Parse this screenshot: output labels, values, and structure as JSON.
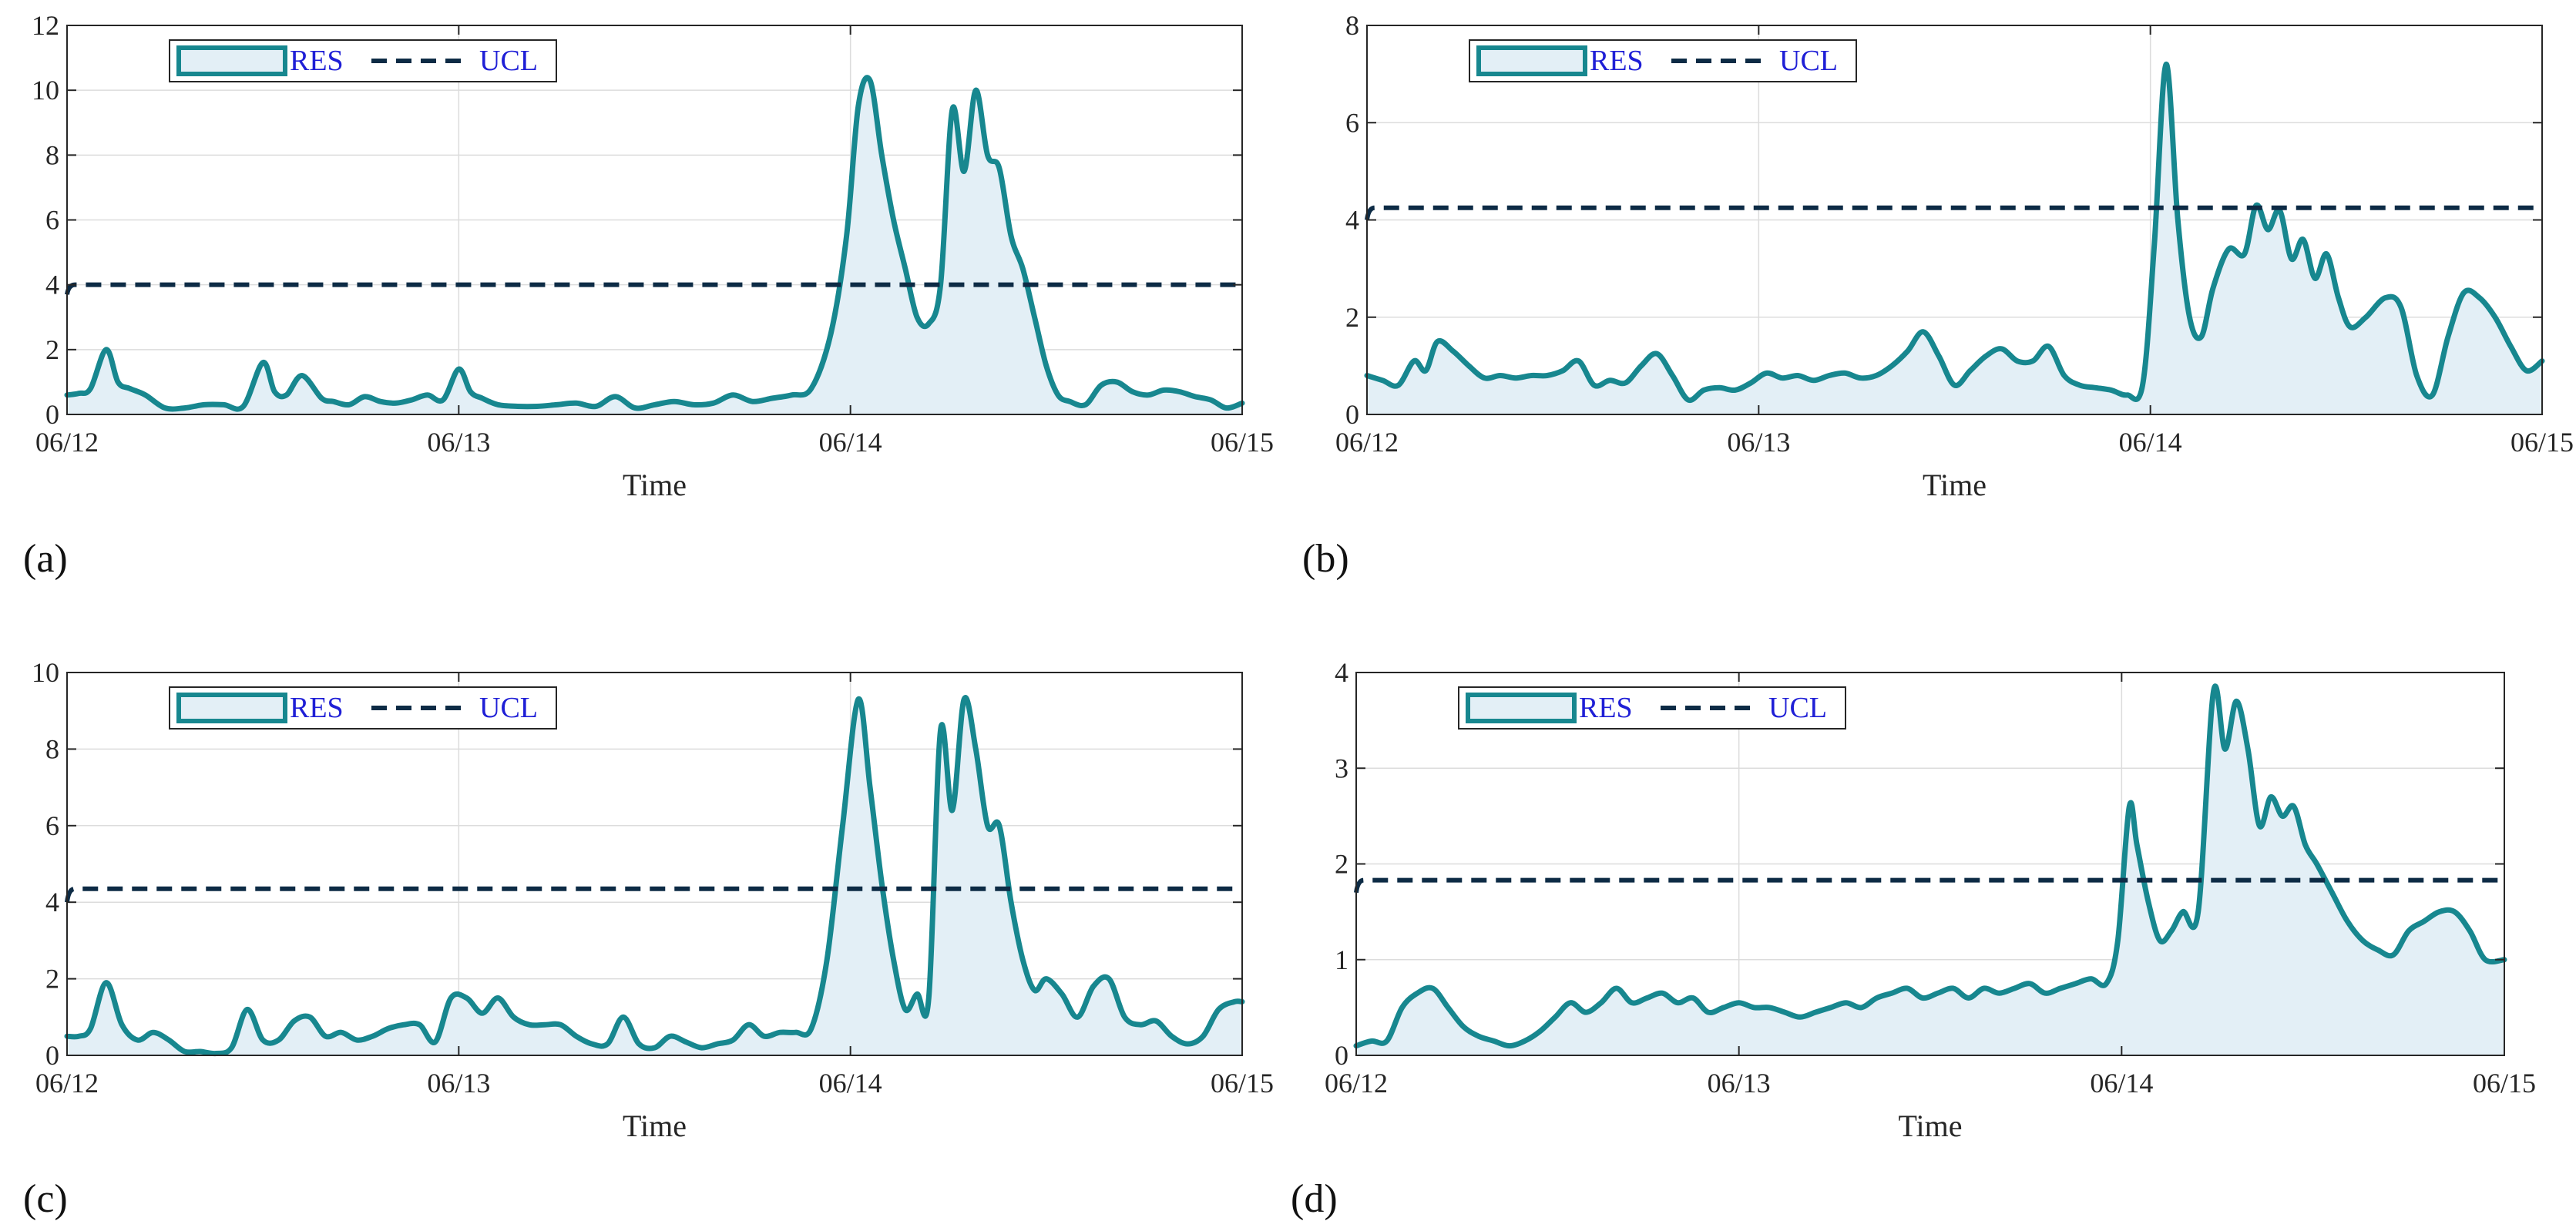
{
  "colors": {
    "res_line": "#17878f",
    "res_fill": "#e3eff6",
    "ucl_line": "#0d2b45",
    "grid": "#dcdcdc",
    "axis": "#262626",
    "legend_text": "#1f1fd6"
  },
  "chart_data": [
    {
      "type": "area",
      "panel_label": "(a)",
      "xlabel": "Time",
      "ylabel": "",
      "xlim": [
        0,
        3
      ],
      "x_ticks": [
        0,
        1,
        2,
        3
      ],
      "x_tick_labels": [
        "06/12",
        "06/13",
        "06/14",
        "06/15"
      ],
      "ylim": [
        0,
        12
      ],
      "y_ticks": [
        0,
        2,
        4,
        6,
        8,
        10,
        12
      ],
      "grid": true,
      "legend": {
        "entries": [
          "RES",
          "UCL"
        ],
        "position": "top-left"
      },
      "ucl": {
        "name": "UCL",
        "value": 4.0,
        "start": [
          0,
          3.7
        ]
      },
      "series": [
        {
          "name": "RES",
          "x": [
            0,
            0.03,
            0.06,
            0.1,
            0.13,
            0.16,
            0.2,
            0.25,
            0.3,
            0.35,
            0.4,
            0.45,
            0.5,
            0.53,
            0.56,
            0.6,
            0.65,
            0.68,
            0.72,
            0.76,
            0.8,
            0.84,
            0.88,
            0.92,
            0.96,
            1.0,
            1.03,
            1.06,
            1.1,
            1.15,
            1.2,
            1.25,
            1.3,
            1.35,
            1.4,
            1.45,
            1.5,
            1.55,
            1.6,
            1.65,
            1.7,
            1.75,
            1.8,
            1.85,
            1.9,
            1.95,
            1.99,
            2.02,
            2.05,
            2.08,
            2.11,
            2.14,
            2.17,
            2.2,
            2.23,
            2.26,
            2.29,
            2.32,
            2.35,
            2.38,
            2.41,
            2.44,
            2.47,
            2.5,
            2.53,
            2.56,
            2.6,
            2.64,
            2.68,
            2.72,
            2.76,
            2.8,
            2.84,
            2.88,
            2.92,
            2.96,
            3.0
          ],
          "values": [
            0.6,
            0.65,
            0.8,
            2.0,
            1.0,
            0.8,
            0.6,
            0.2,
            0.2,
            0.3,
            0.3,
            0.25,
            1.6,
            0.7,
            0.6,
            1.2,
            0.5,
            0.4,
            0.3,
            0.55,
            0.4,
            0.35,
            0.45,
            0.6,
            0.45,
            1.4,
            0.7,
            0.5,
            0.3,
            0.25,
            0.25,
            0.3,
            0.35,
            0.25,
            0.55,
            0.2,
            0.3,
            0.4,
            0.3,
            0.35,
            0.6,
            0.4,
            0.5,
            0.6,
            0.8,
            2.5,
            5.5,
            9.5,
            10.3,
            8.0,
            6.0,
            4.5,
            3.0,
            2.8,
            4.0,
            9.4,
            7.5,
            10.0,
            8.0,
            7.6,
            5.5,
            4.5,
            3.0,
            1.5,
            0.6,
            0.4,
            0.3,
            0.9,
            1.0,
            0.7,
            0.6,
            0.75,
            0.7,
            0.55,
            0.45,
            0.2,
            0.35
          ]
        }
      ]
    },
    {
      "type": "area",
      "panel_label": "(b)",
      "xlabel": "Time",
      "ylabel": "",
      "xlim": [
        0,
        3
      ],
      "x_ticks": [
        0,
        1,
        2,
        3
      ],
      "x_tick_labels": [
        "06/12",
        "06/13",
        "06/14",
        "06/15"
      ],
      "ylim": [
        0,
        8
      ],
      "y_ticks": [
        0,
        2,
        4,
        6,
        8
      ],
      "grid": true,
      "legend": {
        "entries": [
          "RES",
          "UCL"
        ],
        "position": "top-left"
      },
      "ucl": {
        "name": "UCL",
        "value": 4.25,
        "start": [
          0,
          4.0
        ]
      },
      "series": [
        {
          "name": "RES",
          "x": [
            0,
            0.04,
            0.08,
            0.12,
            0.15,
            0.18,
            0.22,
            0.26,
            0.3,
            0.34,
            0.38,
            0.42,
            0.46,
            0.5,
            0.54,
            0.58,
            0.62,
            0.66,
            0.7,
            0.74,
            0.78,
            0.82,
            0.86,
            0.9,
            0.94,
            0.98,
            1.02,
            1.06,
            1.1,
            1.14,
            1.18,
            1.22,
            1.26,
            1.3,
            1.34,
            1.38,
            1.42,
            1.46,
            1.5,
            1.54,
            1.58,
            1.62,
            1.66,
            1.7,
            1.74,
            1.78,
            1.82,
            1.86,
            1.9,
            1.94,
            1.98,
            2.01,
            2.04,
            2.07,
            2.1,
            2.13,
            2.16,
            2.2,
            2.24,
            2.27,
            2.3,
            2.33,
            2.36,
            2.39,
            2.42,
            2.45,
            2.48,
            2.51,
            2.55,
            2.6,
            2.64,
            2.68,
            2.72,
            2.76,
            2.8,
            2.84,
            2.88,
            2.92,
            2.96,
            3.0
          ],
          "values": [
            0.8,
            0.7,
            0.6,
            1.1,
            0.9,
            1.5,
            1.3,
            1.0,
            0.75,
            0.8,
            0.75,
            0.8,
            0.8,
            0.9,
            1.1,
            0.6,
            0.7,
            0.65,
            1.0,
            1.25,
            0.8,
            0.3,
            0.5,
            0.55,
            0.5,
            0.65,
            0.85,
            0.75,
            0.8,
            0.7,
            0.8,
            0.85,
            0.75,
            0.8,
            1.0,
            1.3,
            1.7,
            1.2,
            0.6,
            0.9,
            1.2,
            1.35,
            1.1,
            1.1,
            1.4,
            0.8,
            0.6,
            0.55,
            0.5,
            0.4,
            0.6,
            3.5,
            7.2,
            4.0,
            2.0,
            1.6,
            2.6,
            3.4,
            3.3,
            4.3,
            3.8,
            4.2,
            3.2,
            3.6,
            2.8,
            3.3,
            2.4,
            1.8,
            2.0,
            2.4,
            2.2,
            0.8,
            0.4,
            1.6,
            2.5,
            2.4,
            2.0,
            1.4,
            0.9,
            1.1
          ]
        }
      ]
    },
    {
      "type": "area",
      "panel_label": "(c)",
      "xlabel": "Time",
      "ylabel": "",
      "xlim": [
        0,
        3
      ],
      "x_ticks": [
        0,
        1,
        2,
        3
      ],
      "x_tick_labels": [
        "06/12",
        "06/13",
        "06/14",
        "06/15"
      ],
      "ylim": [
        0,
        10
      ],
      "y_ticks": [
        0,
        2,
        4,
        6,
        8,
        10
      ],
      "grid": true,
      "legend": {
        "entries": [
          "RES",
          "UCL"
        ],
        "position": "top-left"
      },
      "ucl": {
        "name": "UCL",
        "value": 4.35,
        "start": [
          0,
          4.0
        ]
      },
      "series": [
        {
          "name": "RES",
          "x": [
            0,
            0.03,
            0.06,
            0.1,
            0.14,
            0.18,
            0.22,
            0.26,
            0.3,
            0.34,
            0.38,
            0.42,
            0.46,
            0.5,
            0.54,
            0.58,
            0.62,
            0.66,
            0.7,
            0.74,
            0.78,
            0.82,
            0.86,
            0.9,
            0.94,
            0.98,
            1.02,
            1.06,
            1.1,
            1.14,
            1.18,
            1.22,
            1.26,
            1.3,
            1.34,
            1.38,
            1.42,
            1.46,
            1.5,
            1.54,
            1.58,
            1.62,
            1.66,
            1.7,
            1.74,
            1.78,
            1.82,
            1.86,
            1.9,
            1.94,
            1.98,
            2.02,
            2.05,
            2.08,
            2.11,
            2.14,
            2.17,
            2.2,
            2.23,
            2.26,
            2.29,
            2.32,
            2.35,
            2.38,
            2.41,
            2.44,
            2.47,
            2.5,
            2.54,
            2.58,
            2.62,
            2.66,
            2.7,
            2.74,
            2.78,
            2.82,
            2.86,
            2.9,
            2.94,
            2.98,
            3.0
          ],
          "values": [
            0.5,
            0.5,
            0.7,
            1.9,
            0.8,
            0.4,
            0.6,
            0.4,
            0.1,
            0.1,
            0.05,
            0.2,
            1.2,
            0.4,
            0.4,
            0.9,
            1.0,
            0.5,
            0.6,
            0.4,
            0.5,
            0.7,
            0.8,
            0.8,
            0.35,
            1.5,
            1.5,
            1.1,
            1.5,
            1.0,
            0.8,
            0.8,
            0.8,
            0.5,
            0.3,
            0.3,
            1.0,
            0.3,
            0.2,
            0.5,
            0.35,
            0.2,
            0.3,
            0.4,
            0.8,
            0.5,
            0.6,
            0.6,
            0.7,
            2.5,
            6.0,
            9.3,
            7.0,
            4.5,
            2.5,
            1.2,
            1.6,
            1.5,
            8.5,
            6.4,
            9.3,
            8.0,
            6.0,
            6.0,
            4.0,
            2.5,
            1.7,
            2.0,
            1.6,
            1.0,
            1.8,
            2.0,
            1.0,
            0.8,
            0.9,
            0.5,
            0.3,
            0.5,
            1.2,
            1.4,
            1.4
          ]
        }
      ]
    },
    {
      "type": "area",
      "panel_label": "(d)",
      "xlabel": "Time",
      "ylabel": "",
      "xlim": [
        0,
        3
      ],
      "x_ticks": [
        0,
        1,
        2,
        3
      ],
      "x_tick_labels": [
        "06/12",
        "06/13",
        "06/14",
        "06/15"
      ],
      "ylim": [
        0,
        4
      ],
      "y_ticks": [
        0,
        1,
        2,
        3,
        4
      ],
      "grid": true,
      "legend": {
        "entries": [
          "RES",
          "UCL"
        ],
        "position": "top-left"
      },
      "ucl": {
        "name": "UCL",
        "value": 1.83,
        "start": [
          0,
          1.7
        ]
      },
      "series": [
        {
          "name": "RES",
          "x": [
            0,
            0.04,
            0.08,
            0.12,
            0.16,
            0.2,
            0.24,
            0.28,
            0.32,
            0.36,
            0.4,
            0.44,
            0.48,
            0.52,
            0.56,
            0.6,
            0.64,
            0.68,
            0.72,
            0.76,
            0.8,
            0.84,
            0.88,
            0.92,
            0.96,
            1.0,
            1.04,
            1.08,
            1.12,
            1.16,
            1.2,
            1.24,
            1.28,
            1.32,
            1.36,
            1.4,
            1.44,
            1.48,
            1.52,
            1.56,
            1.6,
            1.64,
            1.68,
            1.72,
            1.76,
            1.8,
            1.84,
            1.88,
            1.92,
            1.96,
            1.99,
            2.02,
            2.04,
            2.07,
            2.1,
            2.13,
            2.16,
            2.2,
            2.24,
            2.27,
            2.3,
            2.33,
            2.36,
            2.39,
            2.42,
            2.45,
            2.48,
            2.51,
            2.55,
            2.59,
            2.63,
            2.67,
            2.71,
            2.75,
            2.79,
            2.83,
            2.87,
            2.91,
            2.95,
            3.0
          ],
          "values": [
            0.1,
            0.15,
            0.15,
            0.5,
            0.65,
            0.7,
            0.5,
            0.3,
            0.2,
            0.15,
            0.1,
            0.15,
            0.25,
            0.4,
            0.55,
            0.45,
            0.55,
            0.7,
            0.55,
            0.6,
            0.65,
            0.55,
            0.6,
            0.45,
            0.5,
            0.55,
            0.5,
            0.5,
            0.45,
            0.4,
            0.45,
            0.5,
            0.55,
            0.5,
            0.6,
            0.65,
            0.7,
            0.6,
            0.65,
            0.7,
            0.6,
            0.7,
            0.65,
            0.7,
            0.75,
            0.65,
            0.7,
            0.75,
            0.8,
            0.75,
            1.2,
            2.6,
            2.2,
            1.6,
            1.2,
            1.3,
            1.5,
            1.5,
            3.8,
            3.2,
            3.7,
            3.2,
            2.4,
            2.7,
            2.5,
            2.6,
            2.2,
            2.0,
            1.7,
            1.4,
            1.2,
            1.1,
            1.05,
            1.3,
            1.4,
            1.5,
            1.5,
            1.3,
            1.0,
            1.0
          ]
        }
      ]
    }
  ]
}
